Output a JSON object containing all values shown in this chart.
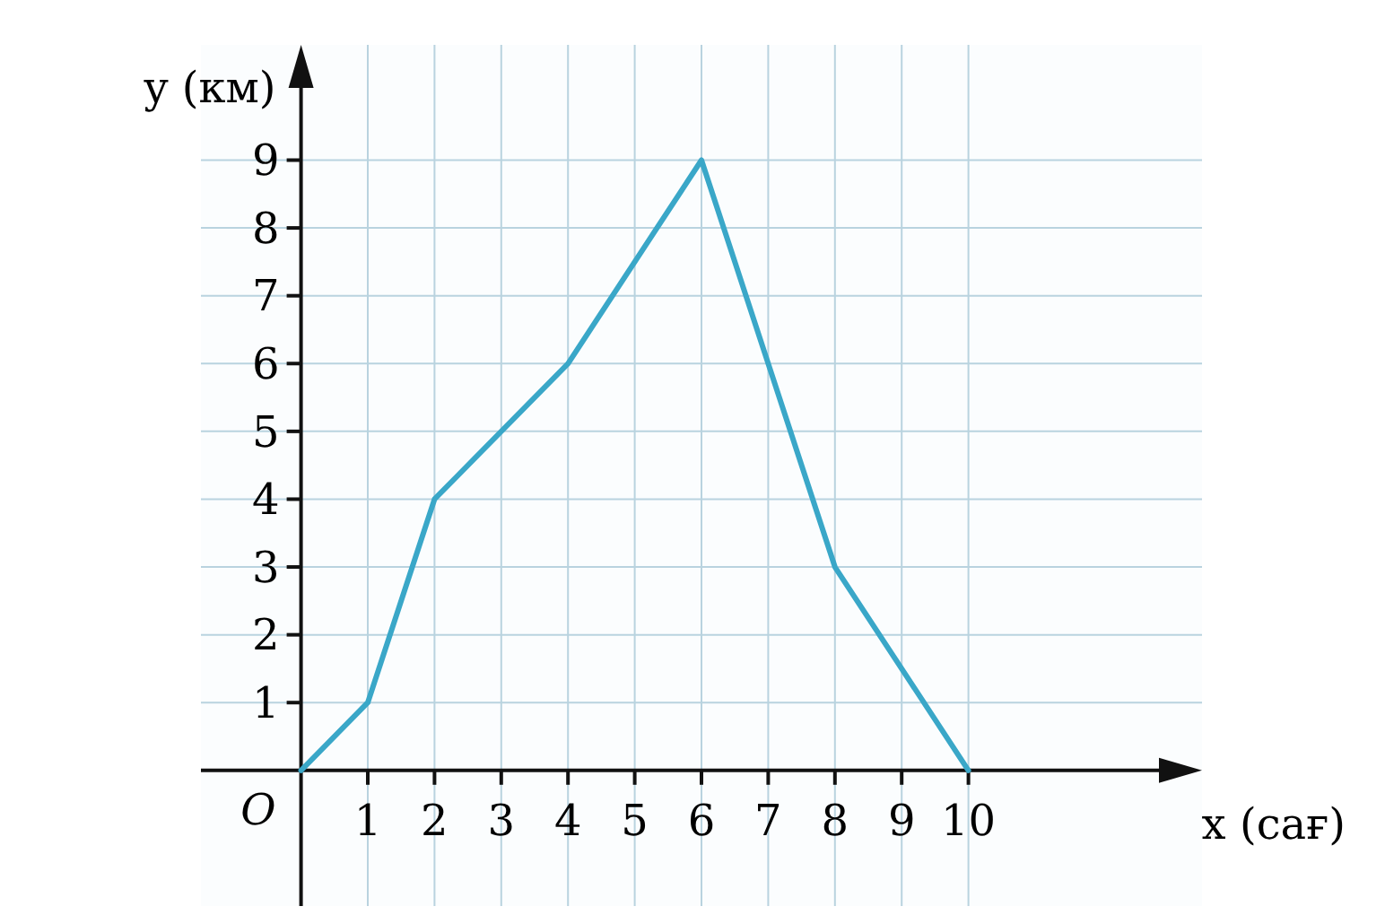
{
  "chart_data": {
    "type": "line",
    "xlabel": "x (сағ)",
    "ylabel": "y (км)",
    "x": [
      0,
      1,
      2,
      4,
      6,
      8,
      10
    ],
    "series": [
      {
        "color": "#3aa7c8",
        "values": [
          0,
          1,
          4,
          6,
          9,
          3,
          0
        ]
      }
    ],
    "xlim": [
      -1.5,
      13.5
    ],
    "ylim": [
      -2,
      10.7
    ],
    "xticks": [
      1,
      2,
      3,
      4,
      5,
      6,
      7,
      8,
      9,
      10
    ],
    "yticks": [
      1,
      2,
      3,
      4,
      5,
      6,
      7,
      8,
      9
    ],
    "grid": true,
    "marker": "none",
    "line_style": "solid",
    "annotations": [
      {
        "text": "O",
        "x": 0,
        "y": 0
      }
    ]
  }
}
